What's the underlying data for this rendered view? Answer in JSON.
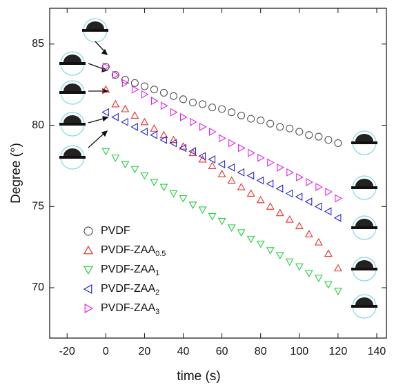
{
  "chart_data": {
    "type": "scatter",
    "xlabel": "time (s)",
    "ylabel": "Degree (°)",
    "xlim": [
      -29,
      145
    ],
    "ylim": [
      66.9,
      87.2
    ],
    "xticks": [
      -20,
      0,
      20,
      40,
      60,
      80,
      100,
      120,
      140
    ],
    "yticks": [
      70,
      75,
      80,
      85
    ],
    "x": [
      0,
      5,
      10,
      15,
      20,
      25,
      30,
      35,
      40,
      45,
      50,
      55,
      60,
      65,
      70,
      75,
      80,
      85,
      90,
      95,
      100,
      105,
      110,
      115,
      120
    ],
    "legend": "lower left",
    "series": [
      {
        "name": "PVDF",
        "color": "#555555",
        "marker": "circle",
        "values": [
          83.6,
          83.1,
          82.8,
          82.6,
          82.4,
          82.2,
          82.0,
          81.8,
          81.6,
          81.4,
          81.3,
          81.1,
          81.0,
          80.8,
          80.6,
          80.4,
          80.3,
          80.1,
          79.9,
          79.8,
          79.6,
          79.4,
          79.3,
          79.1,
          78.9
        ]
      },
      {
        "name": "PVDF-ZAA0.5",
        "color": "#e8312c",
        "marker": "triangle-up",
        "values": [
          82.2,
          81.3,
          81.0,
          80.6,
          80.2,
          79.8,
          79.4,
          79.1,
          78.7,
          78.3,
          77.9,
          77.5,
          77.0,
          76.6,
          76.2,
          75.8,
          75.4,
          75.0,
          74.6,
          74.2,
          73.8,
          73.3,
          72.8,
          72.1,
          71.2
        ]
      },
      {
        "name": "PVDF-ZAA1",
        "color": "#1fd03c",
        "marker": "triangle-down",
        "values": [
          78.4,
          78.0,
          77.6,
          77.3,
          76.9,
          76.5,
          76.2,
          75.8,
          75.5,
          75.1,
          74.8,
          74.4,
          74.1,
          73.7,
          73.4,
          73.0,
          72.7,
          72.3,
          72.0,
          71.6,
          71.3,
          70.9,
          70.6,
          70.2,
          69.8
        ]
      },
      {
        "name": "PVDF-ZAA2",
        "color": "#2424d8",
        "marker": "triangle-left",
        "values": [
          80.8,
          80.5,
          80.2,
          79.9,
          79.6,
          79.4,
          79.1,
          78.9,
          78.6,
          78.4,
          78.1,
          77.9,
          77.6,
          77.4,
          77.1,
          76.9,
          76.6,
          76.4,
          76.1,
          75.8,
          75.6,
          75.3,
          75.0,
          74.7,
          74.3
        ]
      },
      {
        "name": "PVDF-ZAA3",
        "color": "#e020e0",
        "marker": "triangle-right",
        "values": [
          83.6,
          83.1,
          82.6,
          82.2,
          81.9,
          81.5,
          81.2,
          80.8,
          80.5,
          80.2,
          79.9,
          79.6,
          79.2,
          78.9,
          78.6,
          78.3,
          78.0,
          77.7,
          77.4,
          77.1,
          76.8,
          76.5,
          76.2,
          75.9,
          75.5
        ]
      }
    ]
  }
}
